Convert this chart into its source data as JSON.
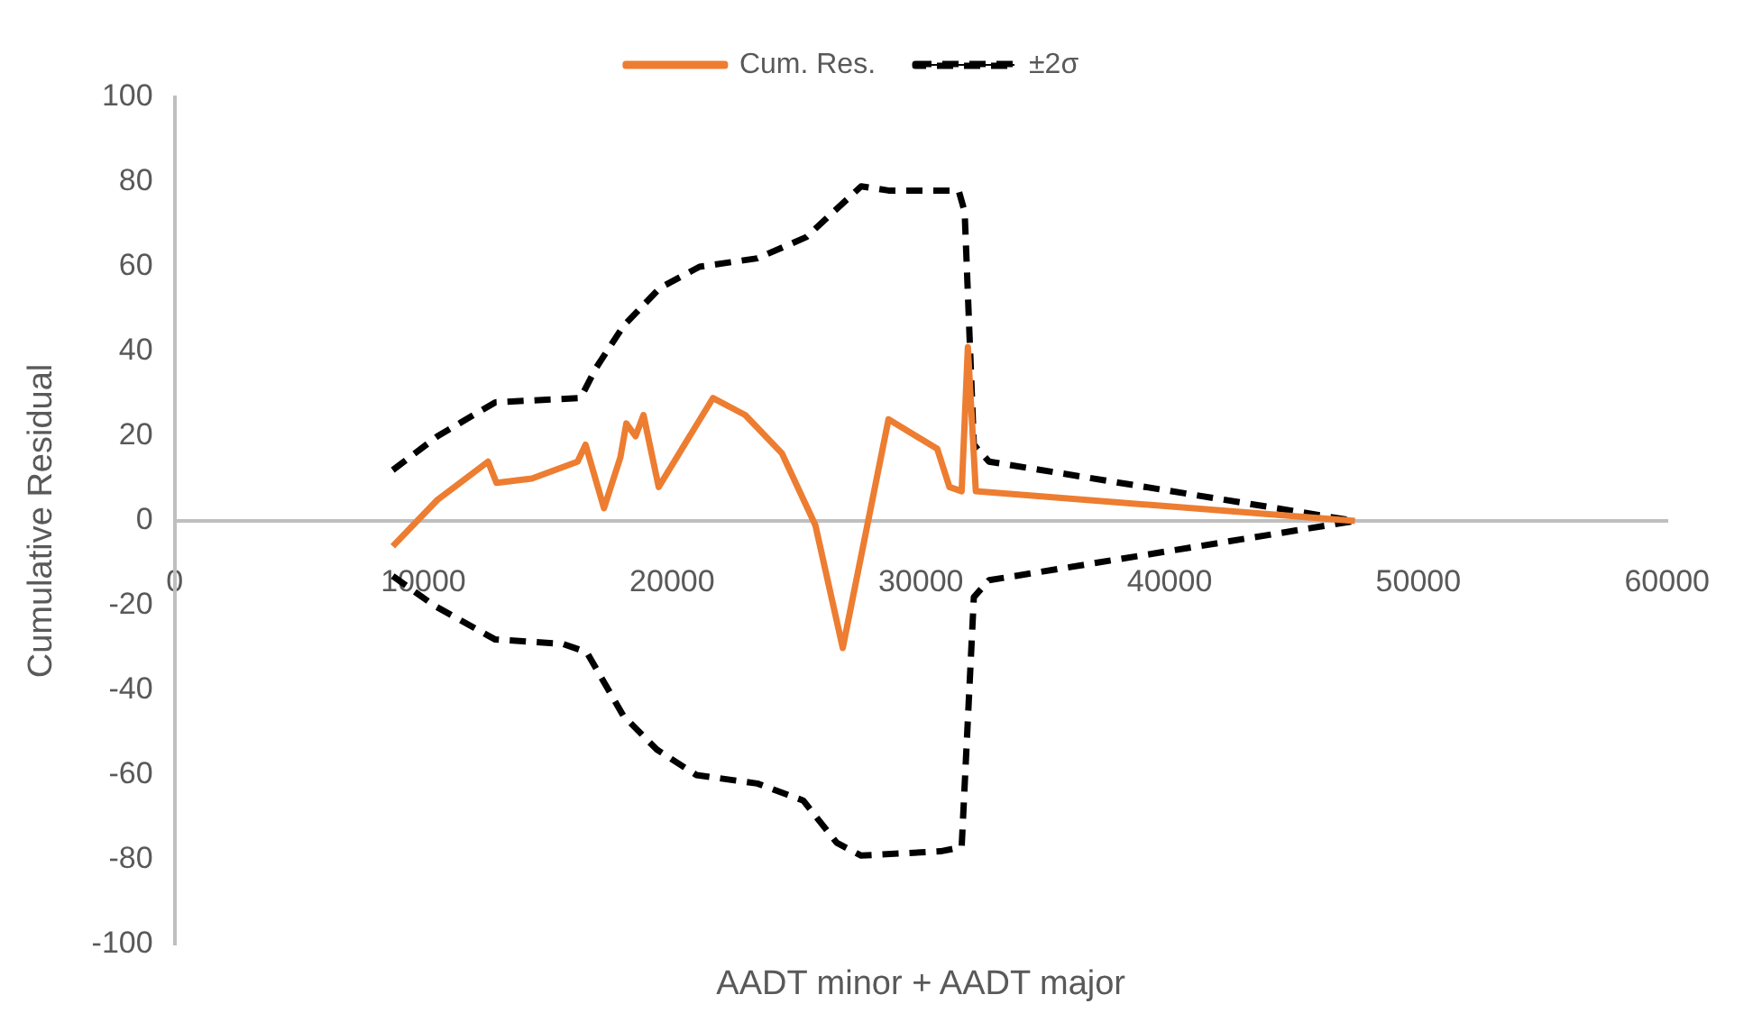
{
  "chart_data": {
    "type": "line",
    "xlabel": "AADT minor + AADT major",
    "ylabel": "Cumulative Residual",
    "xlim": [
      0,
      60000
    ],
    "xticks": [
      0,
      10000,
      20000,
      30000,
      40000,
      50000,
      60000
    ],
    "ylim": [
      -100,
      100
    ],
    "yticks": [
      -100,
      -80,
      -60,
      -40,
      -20,
      0,
      20,
      40,
      60,
      80,
      100
    ],
    "grid": false,
    "legend": "top",
    "marker": "none",
    "series": [
      {
        "name": "Cum. Res.",
        "color": "#ed7d31",
        "line_style": "solid",
        "x": [
          8770,
          10570,
          12600,
          12940,
          14360,
          16200,
          16520,
          17260,
          17920,
          18160,
          18530,
          18850,
          19460,
          21640,
          22940,
          24410,
          25760,
          26860,
          28700,
          30660,
          31150,
          31640,
          31890,
          32210,
          47450
        ],
        "values": [
          -6,
          5,
          14,
          9,
          10,
          14,
          18,
          3,
          15,
          23,
          20,
          25,
          8,
          29,
          25,
          16,
          -1,
          -30,
          24,
          17,
          8,
          7,
          41,
          7,
          0
        ]
      },
      {
        "name": "±2σ",
        "color": "#000000",
        "line_style": "dashed",
        "x": [
          8770,
          10570,
          12890,
          16320,
          16930,
          18040,
          19510,
          21100,
          23430,
          25390,
          27600,
          28700,
          31520,
          31760,
          32130,
          32740,
          47450
        ],
        "values": [
          12,
          20,
          28,
          29,
          36,
          46,
          55,
          60,
          62,
          67,
          79,
          78,
          78,
          73,
          18,
          14,
          0
        ]
      },
      {
        "color": "#000000",
        "line_style": "dashed",
        "x": [
          8770,
          10440,
          12890,
          15590,
          16570,
          18040,
          19390,
          20980,
          23430,
          25270,
          26620,
          27600,
          30790,
          31640,
          32130,
          32740,
          47450
        ],
        "values": [
          -13,
          -20,
          -28,
          -29,
          -31,
          -46,
          -54,
          -60,
          -62,
          -66,
          -76,
          -79,
          -78,
          -77,
          -18,
          -14,
          0
        ]
      }
    ]
  }
}
